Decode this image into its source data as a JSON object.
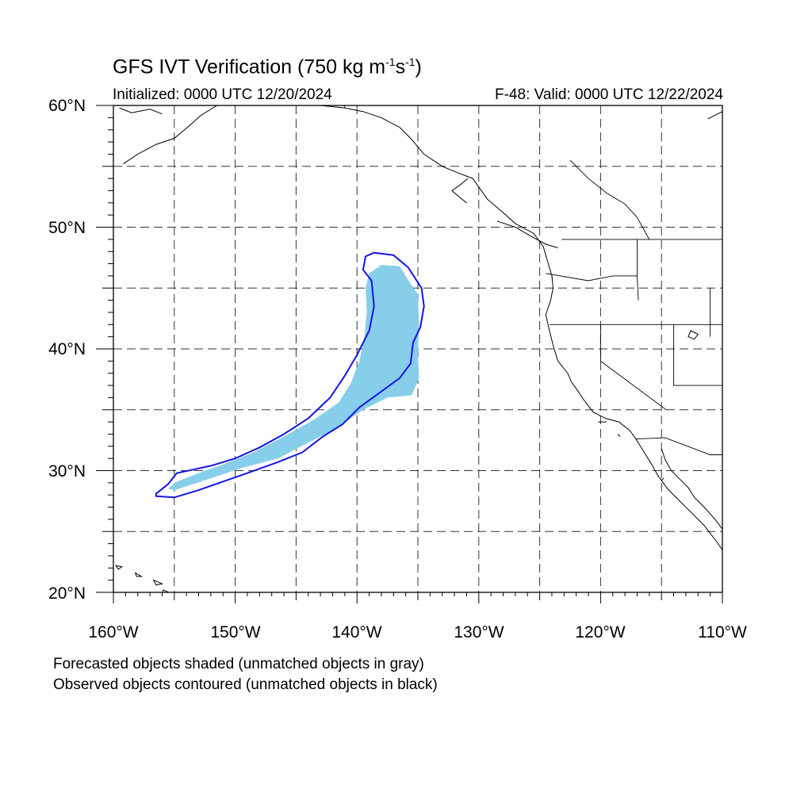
{
  "title": {
    "text": "GFS IVT Verification (750 kg m",
    "sup1": "-1",
    "mid": "s",
    "sup2": "-1",
    "end": ")"
  },
  "initialized": "Initialized: 0000 UTC 12/20/2024",
  "valid": "F-48: Valid: 0000 UTC 12/22/2024",
  "lat_labels": [
    "60°N",
    "50°N",
    "40°N",
    "30°N",
    "20°N"
  ],
  "lon_labels": [
    "160°W",
    "150°W",
    "140°W",
    "130°W",
    "120°W",
    "110°W"
  ],
  "notes": [
    "Forecasted objects shaded (unmatched objects in gray)",
    "Observed objects contoured (unmatched objects in black)"
  ],
  "map": {
    "extent": {
      "lon": [
        -160,
        -110
      ],
      "lat": [
        20,
        60
      ]
    },
    "grid_spacing_deg": 5,
    "forecast_object": {
      "color": "#87ceeb",
      "outline": [
        [
          -155.5,
          28.5
        ],
        [
          -155.0,
          29.0
        ],
        [
          -153.0,
          29.8
        ],
        [
          -151.0,
          30.5
        ],
        [
          -148.5,
          31.5
        ],
        [
          -146.0,
          32.8
        ],
        [
          -143.5,
          34.2
        ],
        [
          -141.5,
          35.6
        ],
        [
          -140.5,
          37.2
        ],
        [
          -139.8,
          39.0
        ],
        [
          -139.4,
          41.0
        ],
        [
          -139.2,
          43.0
        ],
        [
          -139.3,
          45.0
        ],
        [
          -139.0,
          46.2
        ],
        [
          -138.0,
          46.9
        ],
        [
          -136.5,
          46.8
        ],
        [
          -135.7,
          45.5
        ],
        [
          -135.0,
          44.5
        ],
        [
          -134.9,
          42.0
        ],
        [
          -135.0,
          39.5
        ],
        [
          -134.9,
          37.6
        ],
        [
          -135.5,
          36.2
        ],
        [
          -137.5,
          36.0
        ],
        [
          -139.5,
          35.0
        ],
        [
          -141.5,
          33.6
        ],
        [
          -144.0,
          32.3
        ],
        [
          -146.5,
          31.0
        ],
        [
          -149.5,
          30.2
        ],
        [
          -152.5,
          29.2
        ],
        [
          -155.0,
          28.4
        ]
      ]
    },
    "observed_object": {
      "color": "#1414e6",
      "outline": [
        [
          -156.5,
          28.1
        ],
        [
          -155.5,
          28.9
        ],
        [
          -154.8,
          29.8
        ],
        [
          -152.0,
          30.4
        ],
        [
          -150.0,
          31.0
        ],
        [
          -148.0,
          31.9
        ],
        [
          -146.0,
          33.0
        ],
        [
          -144.0,
          34.3
        ],
        [
          -142.2,
          36.0
        ],
        [
          -141.0,
          37.8
        ],
        [
          -140.0,
          39.5
        ],
        [
          -139.0,
          41.5
        ],
        [
          -138.6,
          43.5
        ],
        [
          -138.8,
          45.6
        ],
        [
          -139.5,
          46.5
        ],
        [
          -139.3,
          47.6
        ],
        [
          -138.6,
          47.9
        ],
        [
          -137.0,
          47.7
        ],
        [
          -135.8,
          46.7
        ],
        [
          -134.7,
          45.0
        ],
        [
          -134.5,
          43.5
        ],
        [
          -134.8,
          41.8
        ],
        [
          -135.4,
          40.5
        ],
        [
          -135.6,
          38.8
        ],
        [
          -136.5,
          37.6
        ],
        [
          -138.0,
          36.5
        ],
        [
          -139.8,
          35.2
        ],
        [
          -141.2,
          33.8
        ],
        [
          -142.8,
          32.8
        ],
        [
          -144.5,
          31.5
        ],
        [
          -146.5,
          30.7
        ],
        [
          -149.0,
          29.8
        ],
        [
          -151.0,
          29.1
        ],
        [
          -153.0,
          28.4
        ],
        [
          -155.0,
          27.8
        ],
        [
          -156.5,
          27.9
        ]
      ]
    },
    "coastlines": [
      [
        [
          -159.2,
          55.2
        ],
        [
          -158.0,
          56.0
        ],
        [
          -156.5,
          56.8
        ],
        [
          -155.0,
          57.3
        ],
        [
          -153.8,
          58.3
        ],
        [
          -152.8,
          59.2
        ],
        [
          -151.5,
          60.0
        ]
      ],
      [
        [
          -159.5,
          59.8
        ],
        [
          -158.5,
          59.4
        ],
        [
          -157.0,
          59.7
        ],
        [
          -156.0,
          59.3
        ]
      ],
      [
        [
          -147.0,
          60.0
        ],
        [
          -145.0,
          60.3
        ],
        [
          -143.0,
          60.0
        ],
        [
          -141.0,
          59.8
        ],
        [
          -139.5,
          59.5
        ],
        [
          -138.0,
          59.0
        ],
        [
          -136.5,
          58.2
        ],
        [
          -135.5,
          57.2
        ],
        [
          -134.5,
          56.0
        ],
        [
          -133.0,
          55.0
        ],
        [
          -131.8,
          54.5
        ],
        [
          -130.5,
          54.0
        ],
        [
          -130.0,
          53.3
        ],
        [
          -129.3,
          52.3
        ],
        [
          -128.0,
          51.2
        ],
        [
          -127.0,
          50.3
        ],
        [
          -125.5,
          49.5
        ],
        [
          -124.7,
          48.4
        ],
        [
          -124.3,
          47.0
        ],
        [
          -124.0,
          46.0
        ],
        [
          -123.9,
          45.0
        ],
        [
          -124.1,
          44.0
        ],
        [
          -124.5,
          42.8
        ],
        [
          -124.2,
          41.5
        ],
        [
          -123.9,
          40.3
        ],
        [
          -123.5,
          39.0
        ],
        [
          -122.7,
          38.0
        ],
        [
          -122.4,
          37.3
        ],
        [
          -121.9,
          36.6
        ],
        [
          -121.3,
          35.7
        ],
        [
          -120.6,
          34.8
        ],
        [
          -119.6,
          34.3
        ],
        [
          -118.5,
          34.0
        ],
        [
          -117.6,
          33.3
        ],
        [
          -117.1,
          32.6
        ],
        [
          -116.6,
          31.8
        ],
        [
          -115.8,
          30.5
        ],
        [
          -115.3,
          29.6
        ],
        [
          -114.5,
          28.5
        ],
        [
          -113.5,
          27.5
        ],
        [
          -112.5,
          26.5
        ],
        [
          -111.5,
          25.5
        ],
        [
          -110.5,
          24.2
        ],
        [
          -110.0,
          23.5
        ]
      ],
      [
        [
          -130.9,
          54.0
        ],
        [
          -131.5,
          53.5
        ],
        [
          -132.2,
          53.0
        ],
        [
          -131.5,
          52.4
        ],
        [
          -131.0,
          52.0
        ]
      ],
      [
        [
          -128.5,
          50.5
        ],
        [
          -127.0,
          50.0
        ],
        [
          -125.8,
          49.3
        ],
        [
          -124.5,
          48.6
        ],
        [
          -123.5,
          48.3
        ]
      ],
      [
        [
          -115.0,
          31.8
        ],
        [
          -114.7,
          30.9
        ],
        [
          -114.2,
          30.0
        ],
        [
          -113.5,
          29.3
        ],
        [
          -112.8,
          28.6
        ],
        [
          -112.3,
          27.8
        ],
        [
          -111.5,
          27.0
        ],
        [
          -110.6,
          26.0
        ],
        [
          -110.0,
          25.2
        ]
      ],
      [
        [
          -110.0,
          59.5
        ],
        [
          -111.2,
          58.9
        ]
      ]
    ],
    "borders": [
      [
        [
          -141.0,
          60.0
        ],
        [
          -141.0,
          59.8
        ]
      ],
      [
        [
          -123.2,
          49.0
        ],
        [
          -110.0,
          49.0
        ]
      ],
      [
        [
          -124.2,
          42.0
        ],
        [
          -110.0,
          42.0
        ]
      ],
      [
        [
          -120.0,
          42.0
        ],
        [
          -120.0,
          39.0
        ],
        [
          -114.6,
          35.0
        ]
      ],
      [
        [
          -117.1,
          32.6
        ],
        [
          -114.7,
          32.7
        ],
        [
          -111.0,
          31.3
        ],
        [
          -110.0,
          31.3
        ]
      ],
      [
        [
          -117.0,
          49.0
        ],
        [
          -117.0,
          46.0
        ],
        [
          -116.9,
          44.0
        ]
      ],
      [
        [
          -114.0,
          42.0
        ],
        [
          -114.0,
          37.0
        ],
        [
          -110.0,
          37.0
        ]
      ],
      [
        [
          -111.0,
          45.0
        ],
        [
          -111.0,
          41.0
        ]
      ],
      [
        [
          -122.5,
          55.5
        ],
        [
          -121.0,
          54.0
        ],
        [
          -119.5,
          52.8
        ],
        [
          -118.0,
          51.9
        ],
        [
          -117.0,
          50.8
        ],
        [
          -116.0,
          49.0
        ]
      ],
      [
        [
          -124.5,
          46.2
        ],
        [
          -121.0,
          45.6
        ],
        [
          -119.0,
          46.0
        ],
        [
          -117.0,
          46.0
        ]
      ]
    ],
    "islands": [
      [
        [
          -155.9,
          20.2
        ],
        [
          -155.0,
          19.8
        ],
        [
          -154.8,
          19.5
        ],
        [
          -155.5,
          19.0
        ],
        [
          -156.0,
          19.7
        ]
      ],
      [
        [
          -156.7,
          21.0
        ],
        [
          -156.0,
          20.7
        ],
        [
          -156.5,
          20.6
        ]
      ],
      [
        [
          -158.2,
          21.6
        ],
        [
          -157.7,
          21.3
        ],
        [
          -158.1,
          21.3
        ]
      ],
      [
        [
          -159.8,
          22.2
        ],
        [
          -159.3,
          22.1
        ],
        [
          -159.6,
          21.9
        ]
      ],
      [
        [
          -115.0,
          29.2
        ],
        [
          -114.8,
          29.4
        ]
      ],
      [
        [
          -118.6,
          33.0
        ],
        [
          -118.4,
          32.8
        ]
      ],
      [
        [
          -120.2,
          34.0
        ],
        [
          -119.5,
          34.0
        ]
      ]
    ],
    "lakes": [
      [
        [
          -112.6,
          41.5
        ],
        [
          -112.0,
          41.2
        ],
        [
          -112.3,
          40.8
        ],
        [
          -112.8,
          41.0
        ]
      ]
    ]
  }
}
